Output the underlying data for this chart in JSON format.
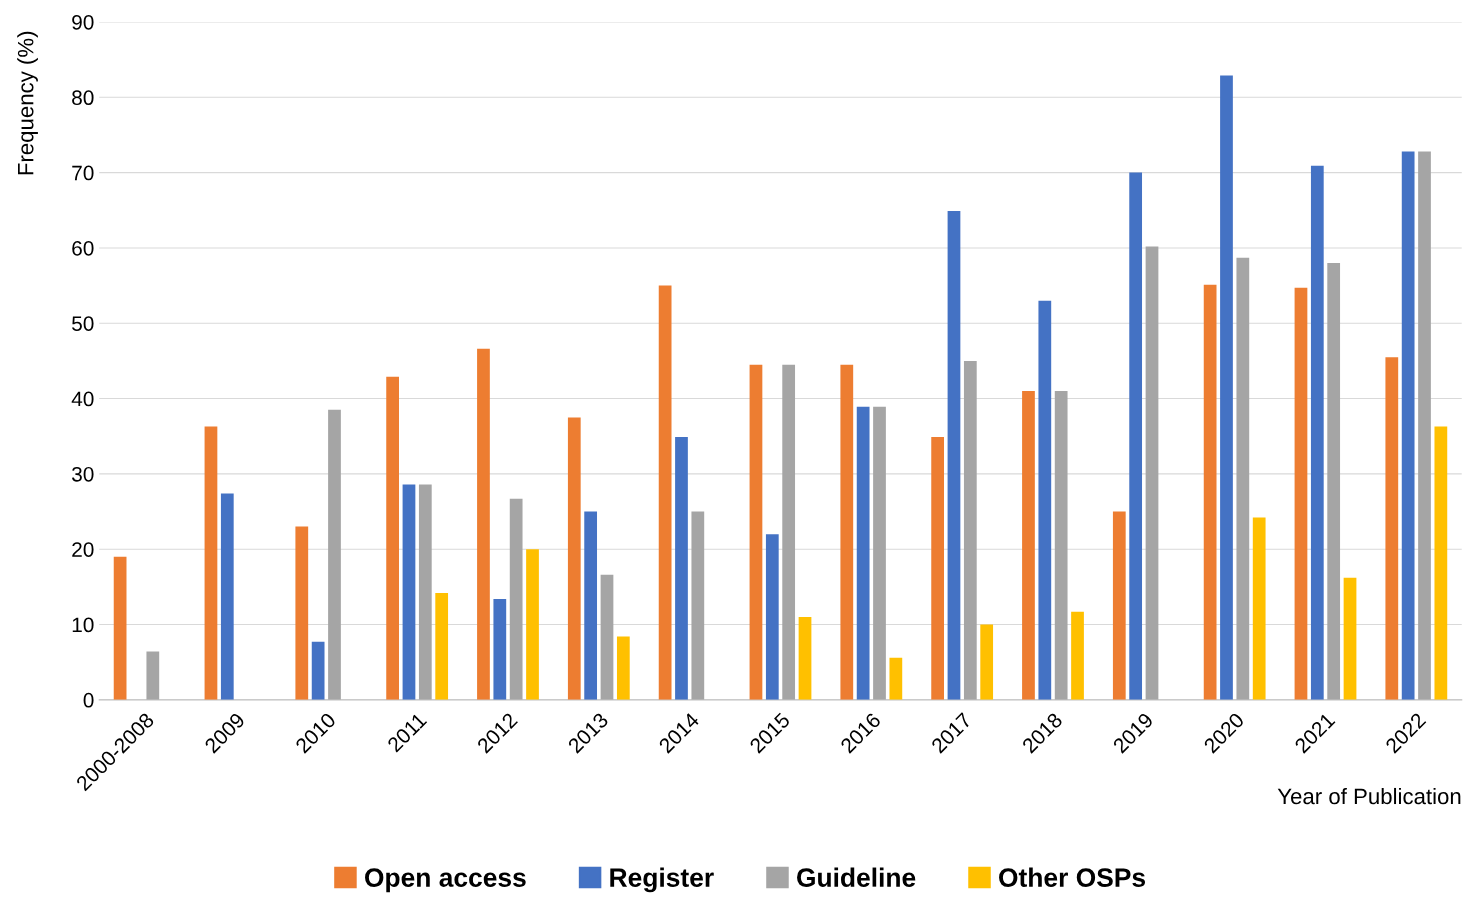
{
  "chart_data": {
    "type": "bar",
    "xlabel": "Year of Publication",
    "ylabel": "Frequency (%)",
    "categories": [
      "2000-2008",
      "2009",
      "2010",
      "2011",
      "2012",
      "2013",
      "2014",
      "2015",
      "2016",
      "2017",
      "2018",
      "2019",
      "2020",
      "2021",
      "2022"
    ],
    "series": [
      {
        "name": "Open access",
        "color": "#ed7d31",
        "values": [
          19.0,
          36.3,
          23.0,
          42.9,
          46.6,
          37.5,
          55.0,
          44.5,
          44.5,
          34.9,
          41.0,
          25.0,
          55.1,
          54.7,
          45.5
        ]
      },
      {
        "name": "Register",
        "color": "#4472c4",
        "values": [
          null,
          27.4,
          7.7,
          28.6,
          13.4,
          25.0,
          34.9,
          22.0,
          38.9,
          64.9,
          53.0,
          70.0,
          82.9,
          70.9,
          72.8
        ]
      },
      {
        "name": "Guideline",
        "color": "#a5a5a5",
        "values": [
          6.4,
          null,
          38.5,
          28.6,
          26.7,
          16.6,
          25.0,
          44.5,
          38.9,
          45.0,
          41.0,
          60.2,
          58.7,
          58.0,
          72.8
        ]
      },
      {
        "name": "Other OSPs",
        "color": "#ffc000",
        "values": [
          null,
          null,
          null,
          14.2,
          20.0,
          8.4,
          null,
          11.0,
          5.6,
          10.0,
          11.7,
          null,
          24.2,
          16.2,
          36.3
        ]
      }
    ],
    "ylim": [
      0,
      90
    ],
    "yticks": [
      0,
      10,
      20,
      30,
      40,
      50,
      60,
      70,
      80,
      90
    ],
    "grid": "y",
    "legend": "bottom"
  }
}
